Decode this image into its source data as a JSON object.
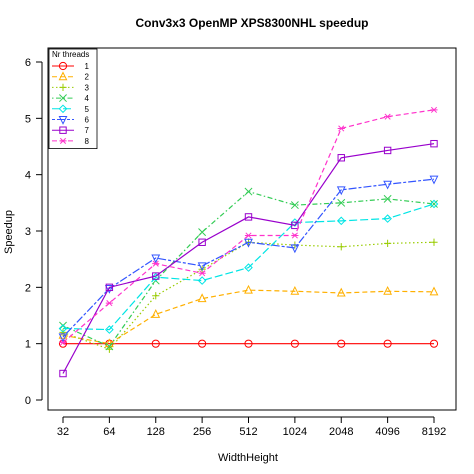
{
  "chart_data": {
    "type": "line",
    "title": "Conv3x3 OpenMP XPS8300NHL speedup",
    "xlabel": "WidthHeight",
    "ylabel": "Speedup",
    "categories": [
      "32",
      "64",
      "128",
      "256",
      "512",
      "1024",
      "2048",
      "4096",
      "8192"
    ],
    "ylim": [
      0,
      6
    ],
    "yticks": [
      0,
      1,
      2,
      3,
      4,
      5,
      6
    ],
    "grid": false,
    "legend": {
      "title": "Nr threads",
      "placement": "top-left"
    },
    "series": [
      {
        "name": "1",
        "color": "#ff0000",
        "dash": "solid",
        "marker": "circle",
        "values": [
          1.0,
          1.0,
          1.0,
          1.0,
          1.0,
          1.0,
          1.0,
          1.0,
          1.0
        ]
      },
      {
        "name": "2",
        "color": "#ffb000",
        "dash": "dashed",
        "marker": "triangle-up",
        "values": [
          1.15,
          1.0,
          1.52,
          1.8,
          1.95,
          1.93,
          1.9,
          1.93,
          1.92
        ]
      },
      {
        "name": "3",
        "color": "#99cc00",
        "dash": "dotted",
        "marker": "plus",
        "values": [
          1.2,
          0.9,
          1.85,
          2.32,
          2.8,
          2.75,
          2.72,
          2.78,
          2.8
        ]
      },
      {
        "name": "4",
        "color": "#33cc55",
        "dash": "dotdash",
        "marker": "x",
        "values": [
          1.32,
          0.95,
          2.12,
          2.98,
          3.7,
          3.46,
          3.5,
          3.57,
          3.48
        ]
      },
      {
        "name": "5",
        "color": "#00e5e5",
        "dash": "longdash",
        "marker": "diamond",
        "values": [
          1.27,
          1.25,
          2.18,
          2.12,
          2.35,
          3.15,
          3.18,
          3.22,
          3.48
        ]
      },
      {
        "name": "6",
        "color": "#3355ff",
        "dash": "twodash",
        "marker": "triangle-down",
        "values": [
          1.12,
          1.98,
          2.52,
          2.38,
          2.8,
          2.7,
          3.73,
          3.83,
          3.92
        ]
      },
      {
        "name": "7",
        "color": "#9900cc",
        "dash": "solid",
        "marker": "square",
        "values": [
          0.47,
          2.0,
          2.2,
          2.8,
          3.25,
          3.1,
          4.3,
          4.43,
          4.55
        ]
      },
      {
        "name": "8",
        "color": "#ff33cc",
        "dash": "dashed",
        "marker": "asterisk",
        "values": [
          1.02,
          1.72,
          2.42,
          2.25,
          2.92,
          2.92,
          4.82,
          5.03,
          5.15
        ]
      }
    ]
  }
}
